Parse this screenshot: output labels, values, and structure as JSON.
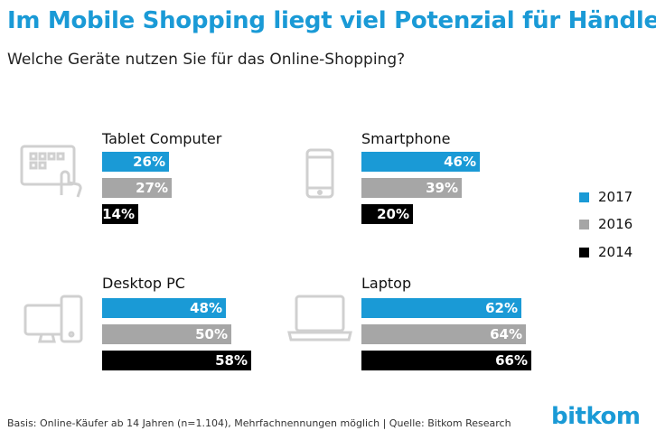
{
  "header": {
    "title": "Im Mobile Shopping liegt viel Potenzial für Händler",
    "subtitle": "Welche Geräte nutzen Sie für das Online-Shopping?"
  },
  "chart_data": {
    "type": "bar",
    "series": [
      {
        "name": "2017",
        "color": "#1a9ad6"
      },
      {
        "name": "2016",
        "color": "#a6a6a6"
      },
      {
        "name": "2014",
        "color": "#000000"
      }
    ],
    "panels": [
      {
        "label": "Tablet Computer",
        "icon": "tablet-icon",
        "values": [
          26,
          27,
          14
        ],
        "value_labels": [
          "26%",
          "27%",
          "14%"
        ]
      },
      {
        "label": "Smartphone",
        "icon": "smartphone-icon",
        "values": [
          46,
          39,
          20
        ],
        "value_labels": [
          "46%",
          "39%",
          "20%"
        ]
      },
      {
        "label": "Desktop PC",
        "icon": "desktop-pc-icon",
        "values": [
          48,
          50,
          58
        ],
        "value_labels": [
          "48%",
          "50%",
          "58%"
        ]
      },
      {
        "label": "Laptop",
        "icon": "laptop-icon",
        "values": [
          62,
          64,
          66
        ],
        "value_labels": [
          "62%",
          "64%",
          "66%"
        ]
      }
    ],
    "unit": "%"
  },
  "legend": {
    "items": [
      "2017",
      "2016",
      "2014"
    ],
    "placement": "right"
  },
  "footer": {
    "note": "Basis: Online-Käufer ab 14 Jahren (n=1.104), Mehrfachnennungen möglich | Quelle: Bitkom Research",
    "brand": "bitkom"
  }
}
